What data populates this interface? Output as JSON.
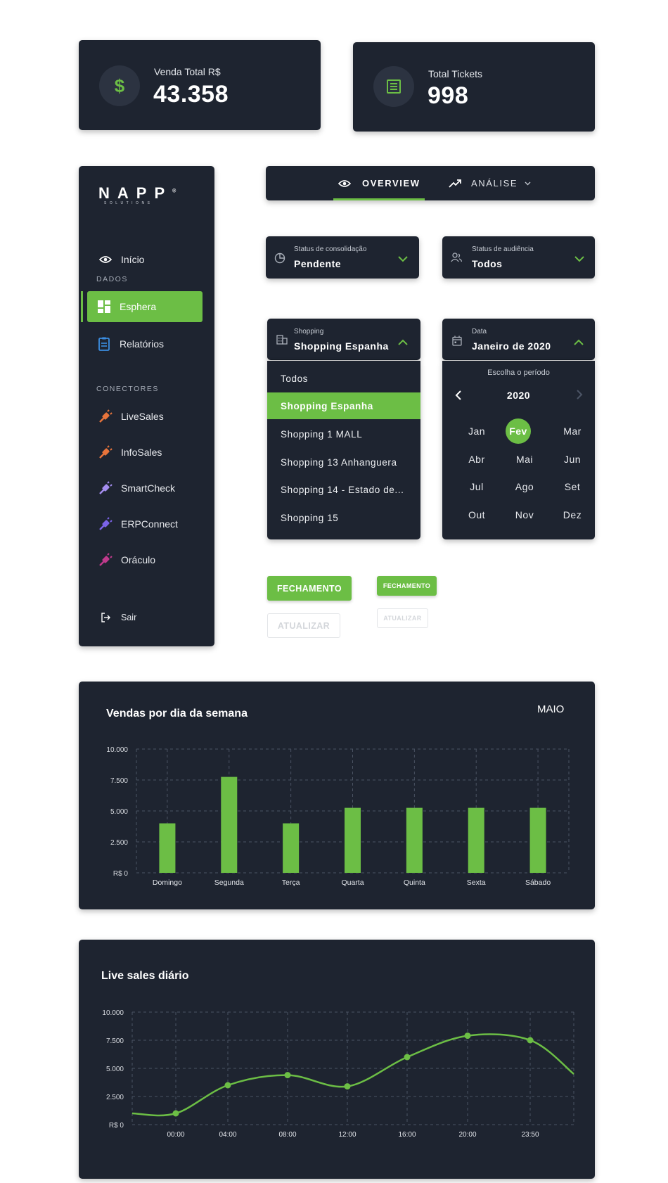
{
  "stats": [
    {
      "label": "Venda Total R$",
      "value": "43.358",
      "icon": "dollar-icon"
    },
    {
      "label": "Total Tickets",
      "value": "998",
      "icon": "receipt-icon"
    }
  ],
  "sidebar": {
    "logo_main": "NAPP",
    "logo_mark": "®",
    "logo_sub": "SOLUTIONS",
    "inicio": "Início",
    "section_dados": "DADOS",
    "esphera": "Esphera",
    "relatorios": "Relatórios",
    "section_conectores": "CONECTORES",
    "connectors": [
      "LiveSales",
      "InfoSales",
      "SmartCheck",
      "ERPConnect",
      "Oráculo"
    ],
    "sair": "Sair"
  },
  "colors": {
    "accent": "#6cbe45",
    "panel": "#1e2430",
    "livesales": "#e8743b",
    "infosales": "#e8743b",
    "smartcheck": "#a58ef0",
    "erpconnect": "#7b63e8",
    "oraculo": "#c03a8c"
  },
  "tabs": {
    "overview": "OVERVIEW",
    "analise": "ANÁLISE"
  },
  "filters": {
    "consolidacao_label": "Status de consolidação",
    "consolidacao_value": "Pendente",
    "audiencia_label": "Status de audiência",
    "audiencia_value": "Todos",
    "shopping_label": "Shopping",
    "shopping_value": "Shopping Espanha",
    "data_label": "Data",
    "data_value": "Janeiro de 2020"
  },
  "shopping_options": [
    "Todos",
    "Shopping Espanha",
    "Shopping 1 MALL",
    "Shopping 13 Anhanguera",
    "Shopping 14 - Estado de...",
    "Shopping 15"
  ],
  "shopping_selected": "Shopping Espanha",
  "calendar": {
    "caption": "Escolha o período",
    "year": "2020",
    "months": [
      "Jan",
      "Fev",
      "Mar",
      "Abr",
      "Mai",
      "Jun",
      "Jul",
      "Ago",
      "Set",
      "Out",
      "Nov",
      "Dez"
    ],
    "selected": "Fev"
  },
  "buttons": {
    "fechamento": "FECHAMENTO",
    "atualizar": "ATUALIZAR"
  },
  "chart_data": [
    {
      "type": "bar",
      "title": "Vendas por dia da semana",
      "badge": "MAIO",
      "categories": [
        "Domingo",
        "Segunda",
        "Terça",
        "Quarta",
        "Quinta",
        "Sexta",
        "Sábado"
      ],
      "values": [
        4000,
        7750,
        4000,
        5250,
        5250,
        5250,
        5250
      ],
      "yticks": [
        "R$ 0",
        "2.500",
        "5.000",
        "7.500",
        "10.000"
      ],
      "ylim": [
        0,
        10000
      ],
      "grid": true
    },
    {
      "type": "line",
      "title": "Live sales diário",
      "xticks": [
        "00:00",
        "04:00",
        "08:00",
        "12:00",
        "16:00",
        "20:00",
        "23:50"
      ],
      "points": [
        [
          0,
          1000
        ],
        [
          4,
          3500
        ],
        [
          8,
          4400
        ],
        [
          12,
          3400
        ],
        [
          16,
          6000
        ],
        [
          20,
          7900
        ],
        [
          23.83,
          7500
        ]
      ],
      "yticks": [
        "R$ 0",
        "2.500",
        "5.000",
        "7.500",
        "10.000"
      ],
      "ylim": [
        0,
        10000
      ],
      "grid": true
    }
  ]
}
